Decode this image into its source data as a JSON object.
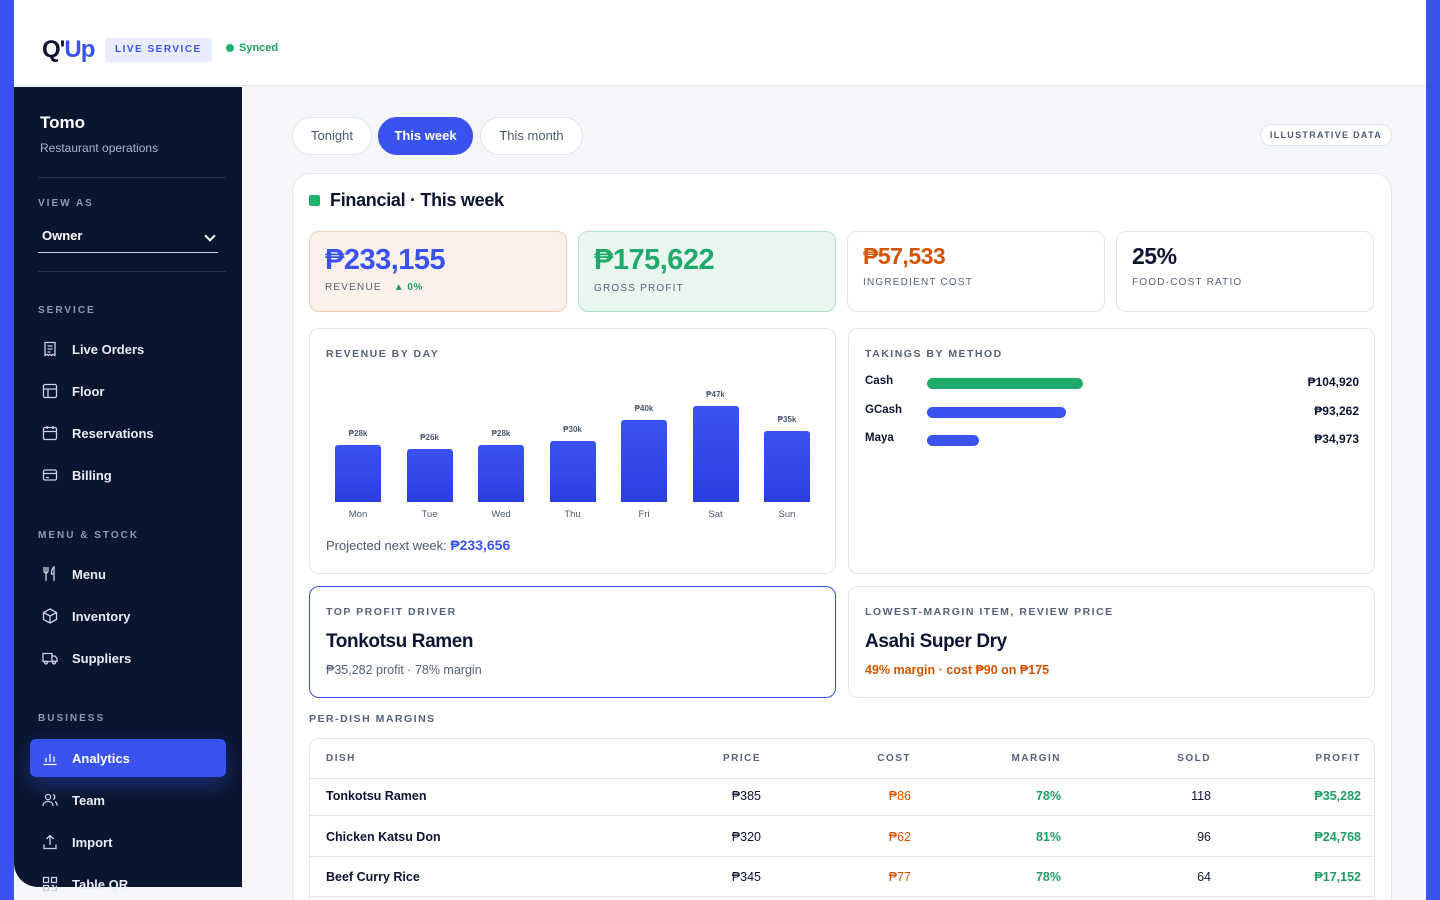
{
  "header": {
    "logo_q": "Q'",
    "logo_up": "Up",
    "badge": "LIVE SERVICE",
    "sync_status": "Synced"
  },
  "sidebar": {
    "brand": "Tomo",
    "subtitle": "Restaurant operations",
    "view_as_label": "VIEW AS",
    "view_as_value": "Owner",
    "sections": {
      "service": "SERVICE",
      "menu_stock": "MENU & STOCK",
      "business": "BUSINESS"
    },
    "items": [
      {
        "label": "Live Orders",
        "icon": "receipt-icon"
      },
      {
        "label": "Floor",
        "icon": "floor-grid-icon"
      },
      {
        "label": "Reservations",
        "icon": "calendar-icon"
      },
      {
        "label": "Billing",
        "icon": "credit-card-icon"
      },
      {
        "label": "Menu",
        "icon": "utensils-icon"
      },
      {
        "label": "Inventory",
        "icon": "box-icon"
      },
      {
        "label": "Suppliers",
        "icon": "truck-icon"
      },
      {
        "label": "Analytics",
        "icon": "bar-chart-icon",
        "active": true
      },
      {
        "label": "Team",
        "icon": "users-icon"
      },
      {
        "label": "Import",
        "icon": "upload-icon"
      },
      {
        "label": "Table QR",
        "icon": "qr-icon"
      }
    ]
  },
  "filters": {
    "tabs": [
      "Tonight",
      "This week",
      "This month"
    ],
    "active": "This week",
    "illustrative": "ILLUSTRATIVE DATA"
  },
  "financial": {
    "title": "Financial · This week",
    "kpis": {
      "revenue": {
        "value": "₱233,155",
        "label": "REVENUE",
        "change": "▲ 0%"
      },
      "gross_profit": {
        "value": "₱175,622",
        "label": "GROSS PROFIT"
      },
      "ingredient_cost": {
        "value": "₱57,533",
        "label": "INGREDIENT COST"
      },
      "food_cost_ratio": {
        "value": "25%",
        "label": "FOOD-COST RATIO"
      }
    },
    "revenue_by_day": {
      "label": "REVENUE BY DAY",
      "projected_label": "Projected next week:",
      "projected_value": "₱233,656"
    },
    "takings": {
      "label": "TAKINGS BY METHOD",
      "methods": [
        {
          "name": "Cash",
          "amount": "₱104,920",
          "value": 104920,
          "color": "#1fa96a"
        },
        {
          "name": "GCash",
          "amount": "₱93,262",
          "value": 93262,
          "color": "#3a52f0"
        },
        {
          "name": "Maya",
          "amount": "₱34,973",
          "value": 34973,
          "color": "#3a52f0"
        }
      ]
    },
    "top_driver": {
      "label": "TOP PROFIT DRIVER",
      "name": "Tonkotsu Ramen",
      "detail": "₱35,282 profit · 78% margin"
    },
    "lowest_margin": {
      "label": "LOWEST-MARGIN ITEM, REVIEW PRICE",
      "name": "Asahi Super Dry",
      "detail": "49% margin · cost ₱90 on ₱175"
    },
    "table": {
      "label": "PER-DISH MARGINS",
      "headers": [
        "DISH",
        "PRICE",
        "COST",
        "MARGIN",
        "SOLD",
        "PROFIT"
      ],
      "rows": [
        [
          "Tonkotsu Ramen",
          "₱385",
          "₱86",
          "78%",
          "118",
          "₱35,282"
        ],
        [
          "Chicken Katsu Don",
          "₱320",
          "₱62",
          "81%",
          "96",
          "₱24,768"
        ],
        [
          "Beef Curry Rice",
          "₱345",
          "₱77",
          "78%",
          "64",
          "₱17,152"
        ]
      ]
    }
  },
  "chart_data": {
    "type": "bar",
    "categories": [
      "Mon",
      "Tue",
      "Wed",
      "Thu",
      "Fri",
      "Sat",
      "Sun"
    ],
    "values": [
      28,
      26,
      28,
      30,
      40,
      47,
      35
    ],
    "value_labels": [
      "₱28k",
      "₱26k",
      "₱28k",
      "₱30k",
      "₱40k",
      "₱47k",
      "₱35k"
    ],
    "title": "REVENUE BY DAY",
    "xlabel": "",
    "ylabel": "",
    "unit": "₱k"
  }
}
